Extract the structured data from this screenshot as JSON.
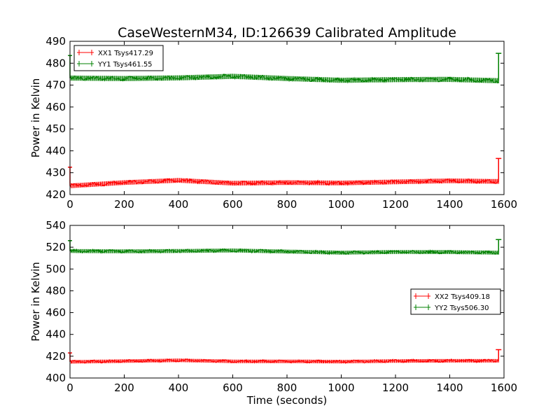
{
  "chart_data": [
    {
      "type": "line",
      "title": "CaseWesternM34, ID:126639 Calibrated Amplitude",
      "xlabel": "",
      "ylabel": "Power in Kelvin",
      "xlim": [
        0,
        1600
      ],
      "ylim": [
        420,
        490
      ],
      "x_ticks": [
        "0",
        "200",
        "400",
        "600",
        "800",
        "1000",
        "1200",
        "1400",
        "1600"
      ],
      "y_ticks": [
        "420",
        "430",
        "440",
        "450",
        "460",
        "470",
        "480",
        "490"
      ],
      "legend_position": "top-left",
      "series": [
        {
          "name": "XX1 Tsys417.29",
          "color": "#ff0000",
          "x_end": 1580,
          "base": 425.5,
          "jitter": 1.2,
          "start_spike": 432.5,
          "end_spike": 436.5,
          "trend": [
            [
              0,
              424.0
            ],
            [
              200,
              425.5
            ],
            [
              400,
              426.5
            ],
            [
              600,
              425.2
            ],
            [
              800,
              425.5
            ],
            [
              1000,
              425.3
            ],
            [
              1200,
              425.8
            ],
            [
              1400,
              426.3
            ],
            [
              1580,
              426.0
            ]
          ]
        },
        {
          "name": "YY1 Tsys461.55",
          "color": "#008000",
          "x_end": 1580,
          "base": 473.0,
          "jitter": 1.3,
          "start_spike": 483.5,
          "end_spike": 484.5,
          "trend": [
            [
              0,
              473.2
            ],
            [
              200,
              473.0
            ],
            [
              400,
              473.3
            ],
            [
              600,
              474.0
            ],
            [
              800,
              473.0
            ],
            [
              1000,
              472.2
            ],
            [
              1200,
              472.5
            ],
            [
              1400,
              472.6
            ],
            [
              1580,
              472.0
            ]
          ]
        }
      ]
    },
    {
      "type": "line",
      "title": "",
      "xlabel": "Time (seconds)",
      "ylabel": "Power in Kelvin",
      "xlim": [
        0,
        1600
      ],
      "ylim": [
        400,
        540
      ],
      "x_ticks": [
        "0",
        "200",
        "400",
        "600",
        "800",
        "1000",
        "1200",
        "1400",
        "1600"
      ],
      "y_ticks": [
        "400",
        "420",
        "440",
        "460",
        "480",
        "500",
        "520",
        "540"
      ],
      "legend_position": "center-right",
      "series": [
        {
          "name": "XX2 Tsys409.18",
          "color": "#ff0000",
          "x_end": 1580,
          "base": 415.5,
          "jitter": 1.8,
          "start_spike": 423.0,
          "end_spike": 426.0,
          "trend": [
            [
              0,
              414.8
            ],
            [
              200,
              415.5
            ],
            [
              400,
              416.2
            ],
            [
              600,
              415.3
            ],
            [
              800,
              415.3
            ],
            [
              1000,
              415.0
            ],
            [
              1200,
              415.6
            ],
            [
              1400,
              415.8
            ],
            [
              1580,
              415.8
            ]
          ]
        },
        {
          "name": "YY2 Tsys506.30",
          "color": "#008000",
          "x_end": 1580,
          "base": 516.0,
          "jitter": 2.0,
          "start_spike": 526.0,
          "end_spike": 527.0,
          "trend": [
            [
              0,
              516.5
            ],
            [
              200,
              516.2
            ],
            [
              400,
              516.5
            ],
            [
              600,
              517.0
            ],
            [
              800,
              516.0
            ],
            [
              1000,
              515.0
            ],
            [
              1200,
              515.6
            ],
            [
              1400,
              515.5
            ],
            [
              1580,
              515.0
            ]
          ]
        }
      ]
    }
  ]
}
